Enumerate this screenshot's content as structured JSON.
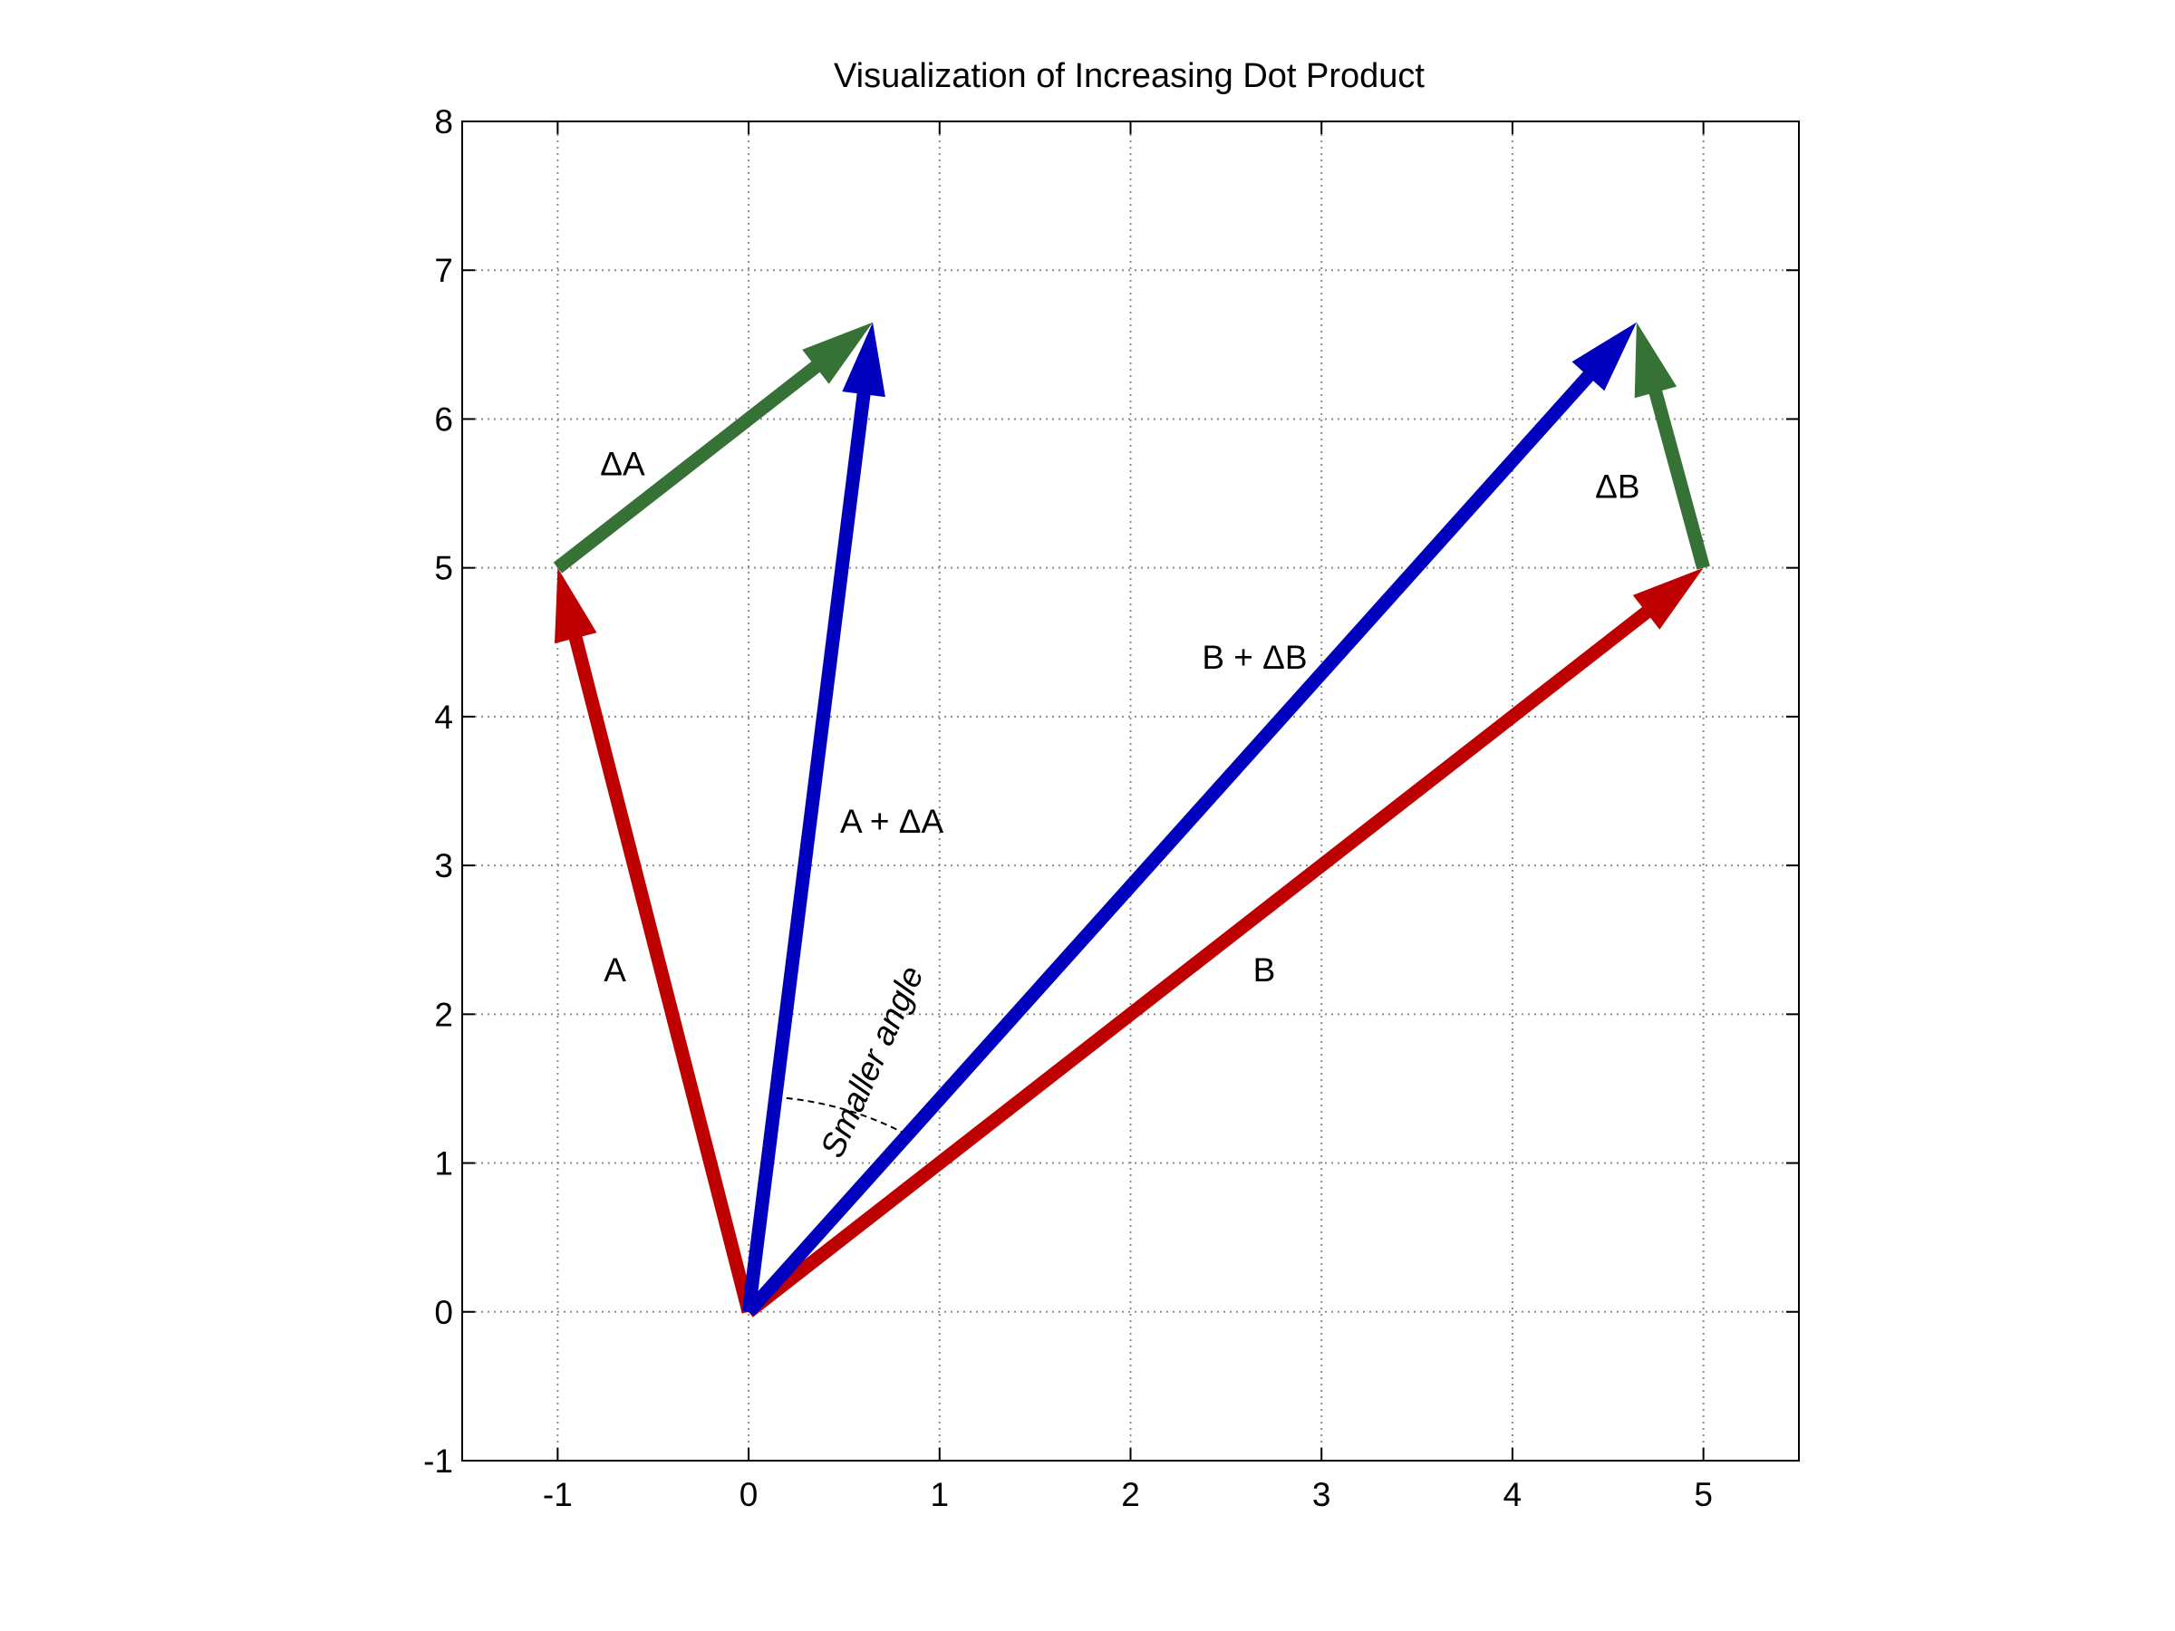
{
  "chart_data": {
    "type": "vector",
    "title": "Visualization of Increasing Dot Product",
    "xlabel": "",
    "ylabel": "",
    "xlim": [
      -1.5,
      5.5
    ],
    "ylim": [
      -1,
      8
    ],
    "xticks": [
      -1,
      0,
      1,
      2,
      3,
      4,
      5
    ],
    "yticks": [
      -1,
      0,
      1,
      2,
      3,
      4,
      5,
      6,
      7,
      8
    ],
    "xtick_labels": [
      "-1",
      "0",
      "1",
      "2",
      "3",
      "4",
      "5"
    ],
    "ytick_labels": [
      "-1",
      "0",
      "1",
      "2",
      "3",
      "4",
      "5",
      "6",
      "7",
      "8"
    ],
    "grid": true,
    "colors": {
      "red": "#bf0000",
      "blue": "#0000bf",
      "green": "#367236"
    },
    "vectors": [
      {
        "label": "A",
        "from": [
          0,
          0
        ],
        "to": [
          -1,
          5
        ],
        "color": "#bf0000",
        "label_at": [
          -0.7,
          2.3
        ]
      },
      {
        "label": "B",
        "from": [
          0,
          0
        ],
        "to": [
          5,
          5
        ],
        "color": "#bf0000",
        "label_at": [
          2.7,
          2.3
        ]
      },
      {
        "label": "A + ΔA",
        "from": [
          0,
          0
        ],
        "to": [
          0.65,
          6.65
        ],
        "color": "#0000bf",
        "label_at": [
          0.75,
          3.3
        ]
      },
      {
        "label": "B + ΔB",
        "from": [
          0,
          0
        ],
        "to": [
          4.65,
          6.65
        ],
        "color": "#0000bf",
        "label_at": [
          2.65,
          4.4
        ]
      },
      {
        "label": "ΔA",
        "from": [
          -1,
          5
        ],
        "to": [
          0.65,
          6.65
        ],
        "color": "#367236",
        "label_at": [
          -0.66,
          5.7
        ]
      },
      {
        "label": "ΔB",
        "from": [
          5,
          5
        ],
        "to": [
          4.65,
          6.65
        ],
        "color": "#367236",
        "label_at": [
          4.55,
          5.55
        ]
      }
    ],
    "annotations": [
      {
        "text": "Smaller angle",
        "at": [
          0.7,
          1.65
        ],
        "rotation_deg": -66
      }
    ],
    "angle_arc": {
      "center": [
        0,
        0
      ],
      "radius": 1.45,
      "between": [
        "A + ΔA",
        "B + ΔB"
      ],
      "style": "dashed"
    }
  }
}
